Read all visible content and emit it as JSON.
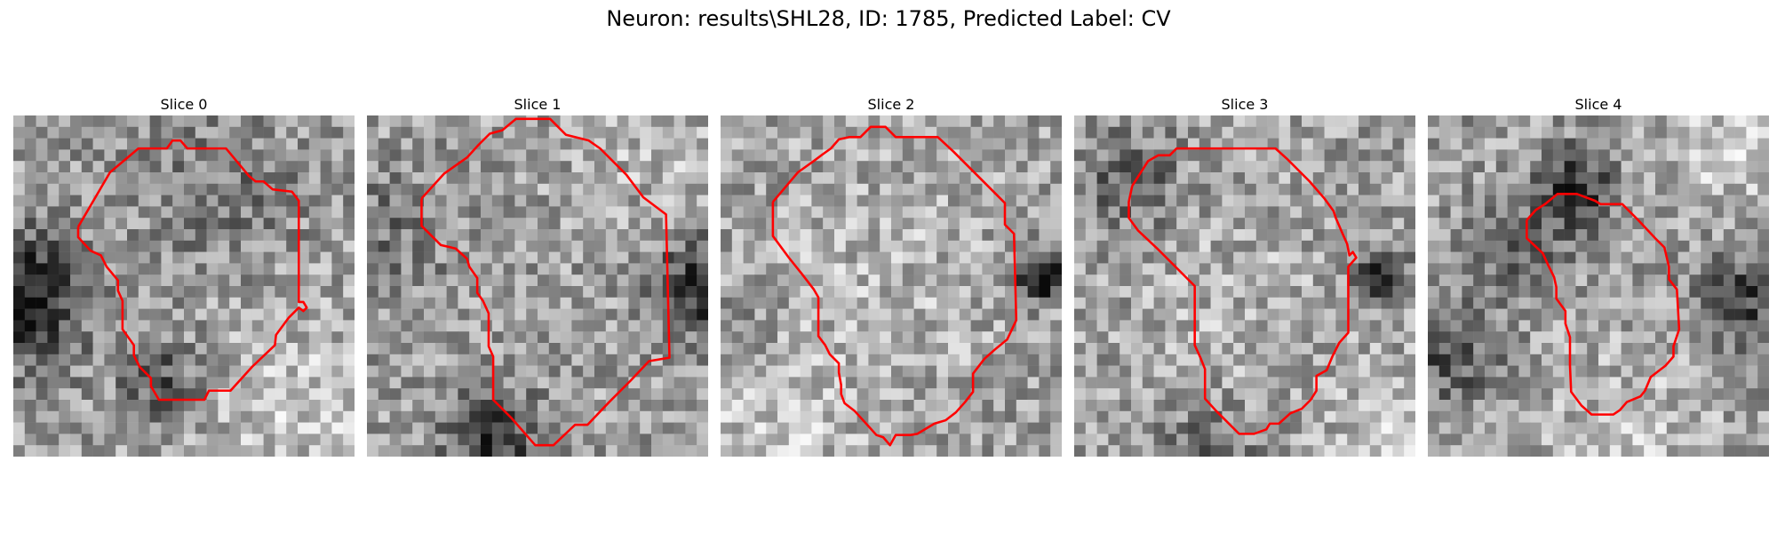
{
  "figure": {
    "title": "Neuron: results\\SHL28, ID: 1785, Predicted Label: CV"
  },
  "panels": [
    {
      "title": "Slice 0"
    },
    {
      "title": "Slice 1"
    },
    {
      "title": "Slice 2"
    },
    {
      "title": "Slice 3"
    },
    {
      "title": "Slice 4"
    }
  ],
  "colors": {
    "contour": "#ff0000",
    "background": "#ffffff"
  }
}
